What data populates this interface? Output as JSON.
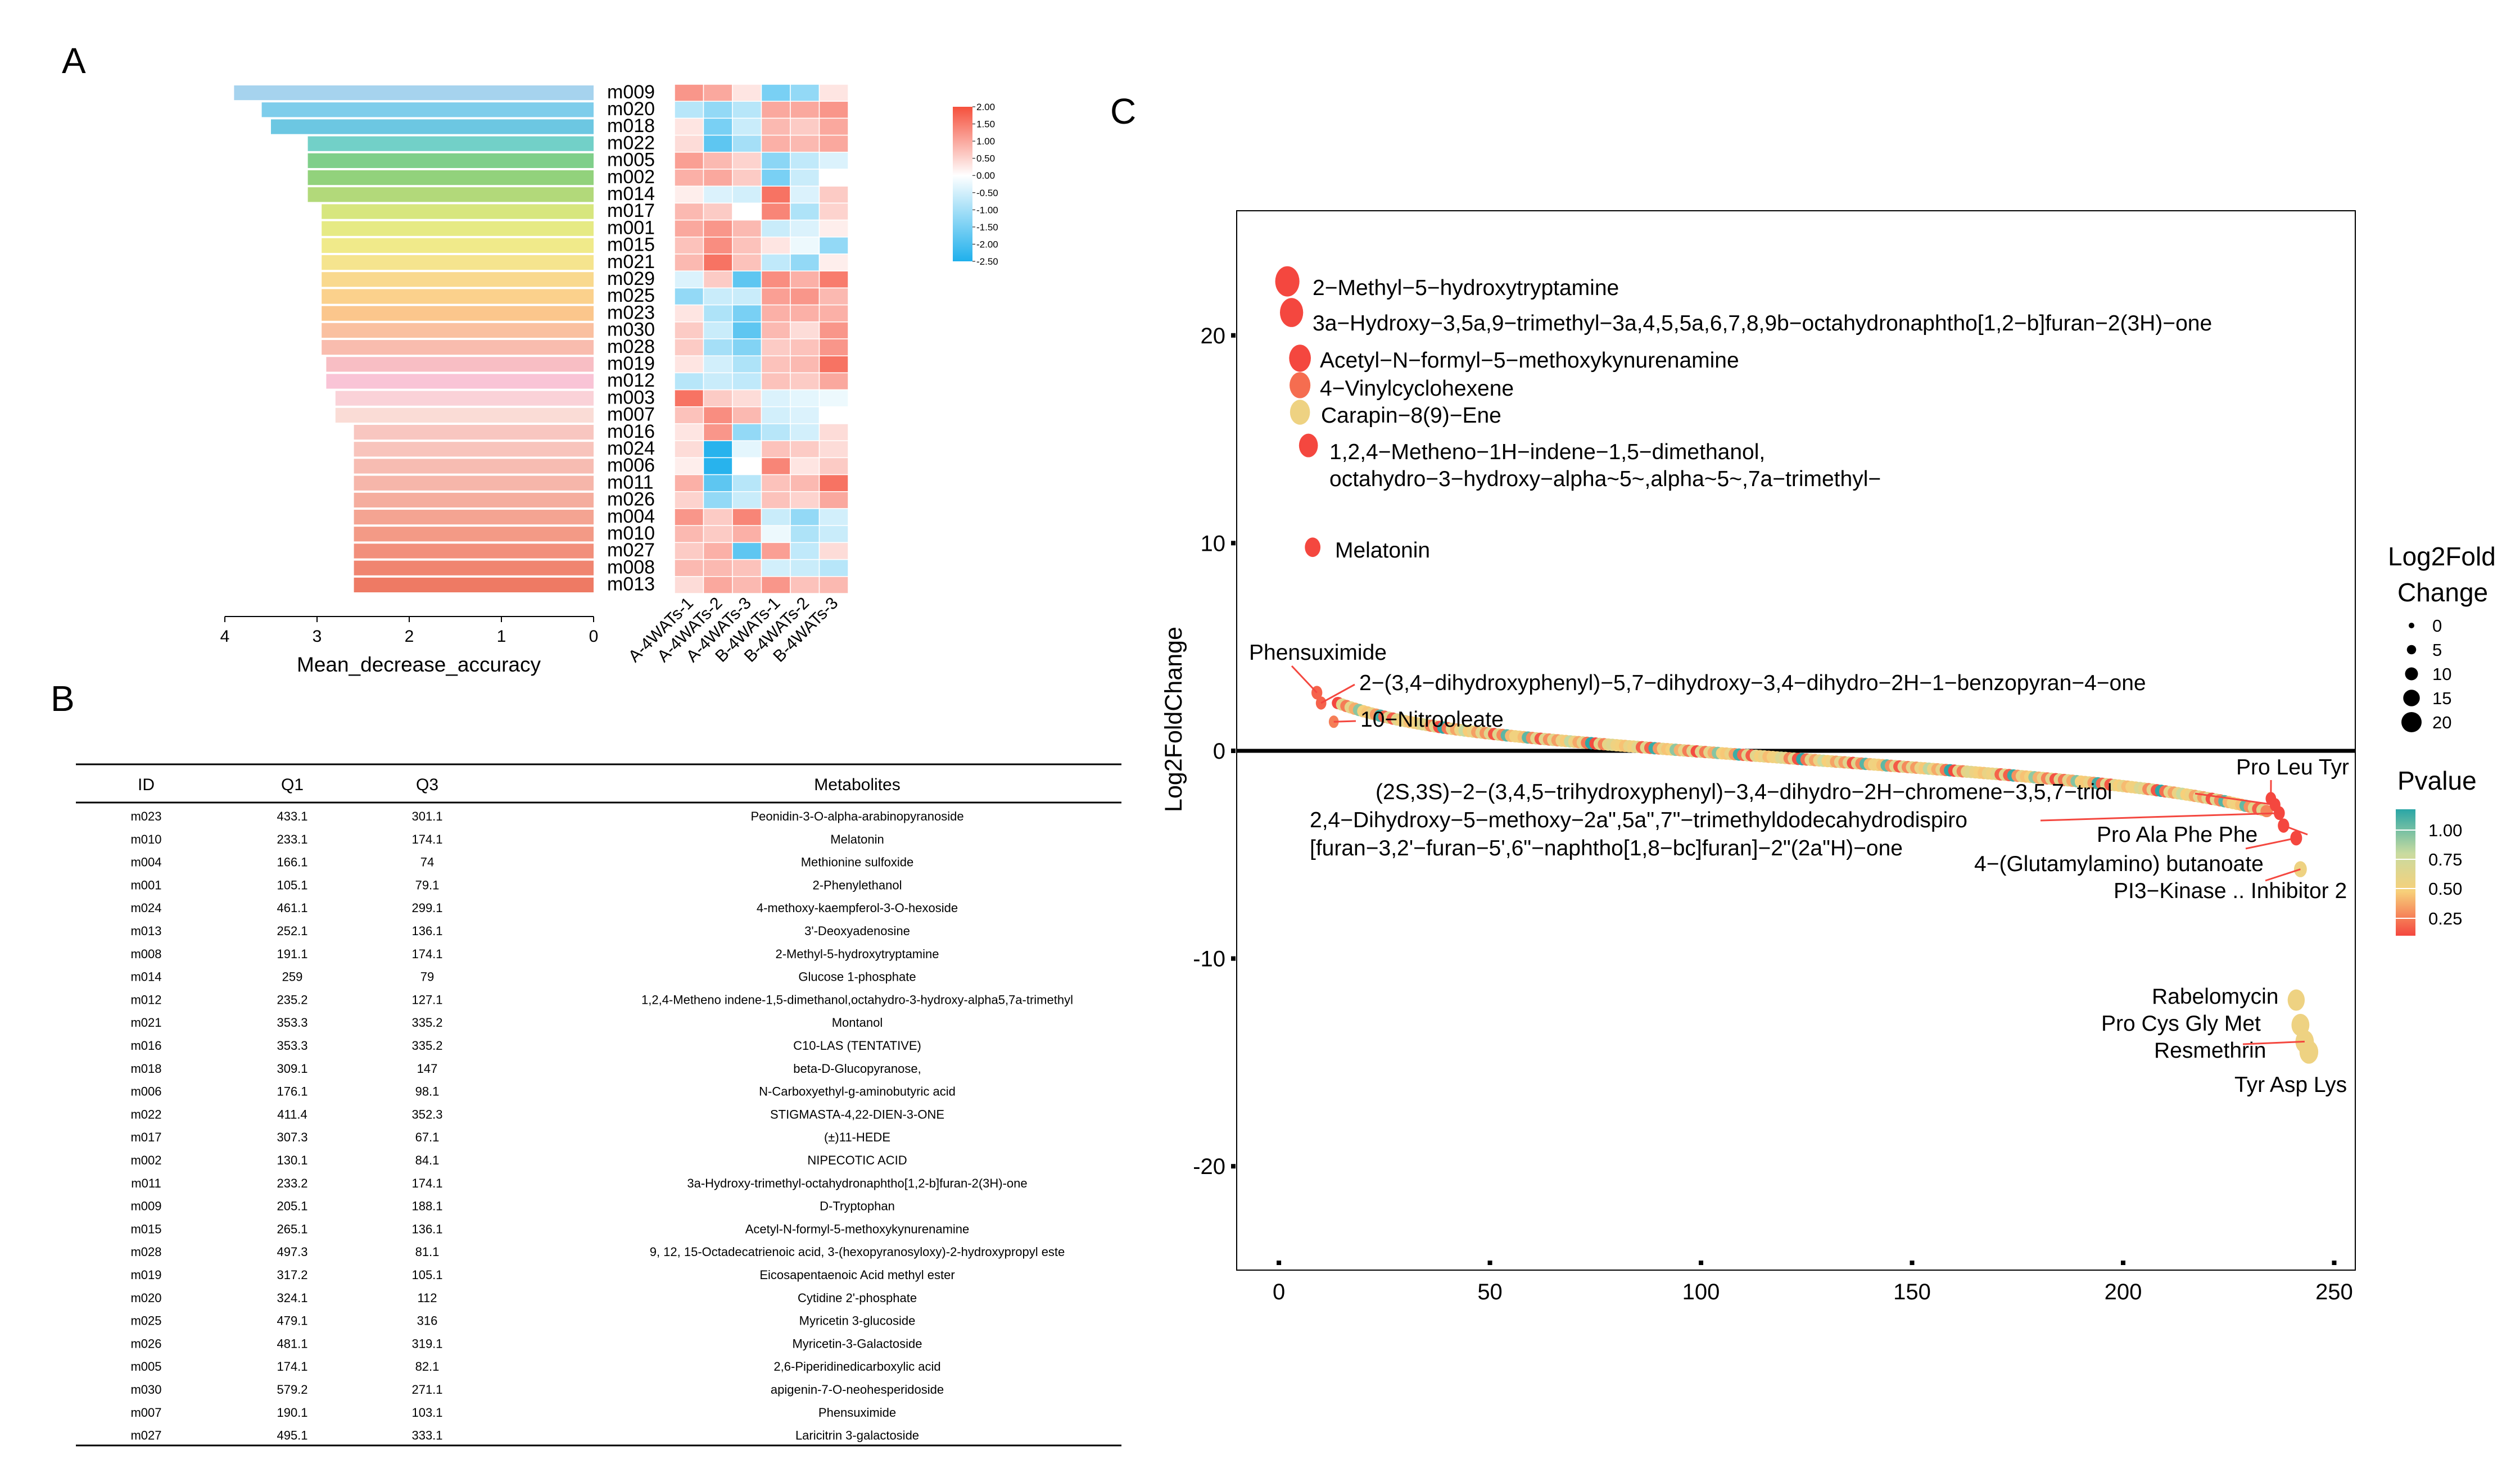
{
  "panels": {
    "a": "A",
    "b": "B",
    "c": "C"
  },
  "panel_a": {
    "bar_axis_label": "Mean_decrease_accuracy",
    "bar_ticks": [
      "4",
      "3",
      "2",
      "1",
      "0"
    ],
    "heatmap_columns": [
      "A-4WATs-1",
      "A-4WATs-2",
      "A-4WATs-3",
      "B-4WATs-1",
      "B-4WATs-2",
      "B-4WATs-3"
    ],
    "colorbar_labels": [
      "2.00",
      "1.50",
      "1.00",
      "0.50",
      "0.00",
      "-0.50",
      "-1.00",
      "-1.50",
      "-2.00",
      "-2.50"
    ]
  },
  "panel_b": {
    "headers": [
      "ID",
      "Q1",
      "Q3",
      "Metabolites"
    ],
    "rows": [
      [
        "m023",
        "433.1",
        "301.1",
        "Peonidin-3-O-alpha-arabinopyranoside"
      ],
      [
        "m010",
        "233.1",
        "174.1",
        "Melatonin"
      ],
      [
        "m004",
        "166.1",
        "74",
        "Methionine sulfoxide"
      ],
      [
        "m001",
        "105.1",
        "79.1",
        "2-Phenylethanol"
      ],
      [
        "m024",
        "461.1",
        "299.1",
        "4-methoxy-kaempferol-3-O-hexoside"
      ],
      [
        "m013",
        "252.1",
        "136.1",
        "3'-Deoxyadenosine"
      ],
      [
        "m008",
        "191.1",
        "174.1",
        "2-Methyl-5-hydroxytryptamine"
      ],
      [
        "m014",
        "259",
        "79",
        "Glucose  1-phosphate"
      ],
      [
        "m012",
        "235.2",
        "127.1",
        "1,2,4-Metheno indene-1,5-dimethanol,octahydro-3-hydroxy-alpha5,7a-trimethyl"
      ],
      [
        "m021",
        "353.3",
        "335.2",
        "Montanol"
      ],
      [
        "m016",
        "353.3",
        "335.2",
        "C10-LAS (TENTATIVE)"
      ],
      [
        "m018",
        "309.1",
        "147",
        "beta-D-Glucopyranose,"
      ],
      [
        "m006",
        "176.1",
        "98.1",
        "N-Carboxyethyl-g-aminobutyric acid"
      ],
      [
        "m022",
        "411.4",
        "352.3",
        "STIGMASTA-4,22-DIEN-3-ONE"
      ],
      [
        "m017",
        "307.3",
        "67.1",
        "(±)11-HEDE"
      ],
      [
        "m002",
        "130.1",
        "84.1",
        "NIPECOTIC ACID"
      ],
      [
        "m011",
        "233.2",
        "174.1",
        "3a-Hydroxy-trimethyl-octahydronaphtho[1,2-b]furan-2(3H)-one"
      ],
      [
        "m009",
        "205.1",
        "188.1",
        "D-Tryptophan"
      ],
      [
        "m015",
        "265.1",
        "136.1",
        "Acetyl-N-formyl-5-methoxykynurenamine"
      ],
      [
        "m028",
        "497.3",
        "81.1",
        "9, 12, 15-Octadecatrienoic acid, 3-(hexopyranosyloxy)-2-hydroxypropyl este"
      ],
      [
        "m019",
        "317.2",
        "105.1",
        "Eicosapentaenoic Acid methyl ester"
      ],
      [
        "m020",
        "324.1",
        "112",
        "Cytidine 2'-phosphate"
      ],
      [
        "m025",
        "479.1",
        "316",
        "Myricetin 3-glucoside"
      ],
      [
        "m026",
        "481.1",
        "319.1",
        "Myricetin-3-Galactoside"
      ],
      [
        "m005",
        "174.1",
        "82.1",
        "2,6-Piperidinedicarboxylic acid"
      ],
      [
        "m030",
        "579.2",
        "271.1",
        "apigenin-7-O-neohesperidoside"
      ],
      [
        "m007",
        "190.1",
        "103.1",
        "Phensuximide"
      ],
      [
        "m027",
        "495.1",
        "333.1",
        "Laricitrin 3-galactoside"
      ]
    ]
  },
  "panel_c": {
    "legend_size_title_1": "Log2Fold",
    "legend_size_title_2": "Change",
    "legend_size_labels": [
      "0",
      "5",
      "10",
      "15",
      "20"
    ],
    "legend_color_title": "Pvalue",
    "legend_color_labels": [
      "1.00",
      "0.75",
      "0.50",
      "0.25"
    ]
  },
  "chart_data": [
    {
      "type": "bar",
      "orientation": "horizontal",
      "xlabel": "Mean_decrease_accuracy",
      "xlim": [
        0,
        4
      ],
      "categories": [
        "m009",
        "m020",
        "m018",
        "m022",
        "m005",
        "m002",
        "m014",
        "m017",
        "m001",
        "m015",
        "m021",
        "m029",
        "m025",
        "m023",
        "m030",
        "m028",
        "m019",
        "m012",
        "m003",
        "m007",
        "m016",
        "m024",
        "m006",
        "m011",
        "m026",
        "m004",
        "m010",
        "m027",
        "m008",
        "m013"
      ],
      "values": [
        3.9,
        3.6,
        3.5,
        3.1,
        3.1,
        3.1,
        3.1,
        2.95,
        2.95,
        2.95,
        2.95,
        2.95,
        2.95,
        2.95,
        2.95,
        2.95,
        2.9,
        2.9,
        2.8,
        2.8,
        2.6,
        2.6,
        2.6,
        2.6,
        2.6,
        2.6,
        2.6,
        2.6,
        2.6,
        2.6
      ],
      "colors": [
        "#a6d3ee",
        "#7ecdeb",
        "#6cc7e2",
        "#72d0c8",
        "#7fcf8a",
        "#92d27c",
        "#b2d97a",
        "#d7e67e",
        "#e6ea84",
        "#f0ea8a",
        "#f5e48e",
        "#f9d98e",
        "#fbd18c",
        "#fbc68c",
        "#fac0a0",
        "#f9bcae",
        "#f8bec4",
        "#f9c4d6",
        "#fad2d8",
        "#fadcd6",
        "#f8c6c0",
        "#f8c4bc",
        "#f7bcb2",
        "#f6b6aa",
        "#f5ad9e",
        "#f4a492",
        "#f39a86",
        "#f28f7b",
        "#f08570",
        "#ee7a64"
      ]
    },
    {
      "type": "heatmap",
      "rows": [
        "m009",
        "m020",
        "m018",
        "m022",
        "m005",
        "m002",
        "m014",
        "m017",
        "m001",
        "m015",
        "m021",
        "m029",
        "m025",
        "m023",
        "m030",
        "m028",
        "m019",
        "m012",
        "m003",
        "m007",
        "m016",
        "m024",
        "m006",
        "m011",
        "m026",
        "m004",
        "m010",
        "m027",
        "m008",
        "m013"
      ],
      "columns": [
        "A-4WATs-1",
        "A-4WATs-2",
        "A-4WATs-3",
        "B-4WATs-1",
        "B-4WATs-2",
        "B-4WATs-3"
      ],
      "color_range": [
        -2.5,
        2.0
      ],
      "values": [
        [
          1.2,
          1.0,
          0.3,
          -1.5,
          -1.2,
          0.3
        ],
        [
          -0.8,
          -1.2,
          -0.8,
          1.0,
          1.0,
          1.2
        ],
        [
          0.3,
          -1.5,
          -0.6,
          0.8,
          0.6,
          1.0
        ],
        [
          0.4,
          -1.8,
          -1.0,
          0.9,
          0.8,
          1.0
        ],
        [
          1.1,
          0.8,
          0.5,
          -1.3,
          -0.7,
          -0.4
        ],
        [
          0.9,
          1.0,
          0.6,
          -1.5,
          -0.6,
          0.0
        ],
        [
          0.2,
          -0.4,
          -0.5,
          1.6,
          -0.4,
          0.6
        ],
        [
          0.8,
          0.6,
          0.0,
          1.4,
          -0.9,
          0.5
        ],
        [
          1.0,
          1.2,
          0.8,
          -0.6,
          -0.4,
          0.2
        ],
        [
          0.7,
          1.3,
          0.7,
          0.3,
          -0.2,
          -1.2
        ],
        [
          0.8,
          1.6,
          0.7,
          -0.7,
          -1.2,
          0.2
        ],
        [
          -0.4,
          0.6,
          -1.8,
          1.3,
          0.9,
          1.5
        ],
        [
          -1.2,
          -0.6,
          -0.6,
          1.1,
          1.2,
          0.8
        ],
        [
          0.3,
          -0.9,
          -1.5,
          0.9,
          0.9,
          0.9
        ],
        [
          0.6,
          -0.6,
          -1.8,
          0.8,
          0.4,
          1.2
        ],
        [
          0.6,
          -1.0,
          -1.4,
          0.6,
          0.7,
          1.2
        ],
        [
          0.3,
          -0.5,
          -0.9,
          0.7,
          0.8,
          1.6
        ],
        [
          -0.8,
          -0.6,
          -0.7,
          0.7,
          0.6,
          1.0
        ],
        [
          1.6,
          0.6,
          0.4,
          -0.4,
          -0.3,
          -0.2
        ],
        [
          0.7,
          1.3,
          0.8,
          -0.5,
          -0.4,
          0.0
        ],
        [
          0.3,
          1.2,
          -1.2,
          -0.8,
          -0.5,
          0.4
        ],
        [
          0.4,
          -2.4,
          -0.3,
          0.7,
          0.6,
          0.4
        ],
        [
          0.2,
          -2.4,
          0.0,
          1.4,
          0.3,
          0.6
        ],
        [
          0.9,
          -1.8,
          -0.8,
          0.7,
          0.8,
          1.6
        ],
        [
          0.5,
          -1.2,
          -0.6,
          0.7,
          0.5,
          1.0
        ],
        [
          1.2,
          0.6,
          1.4,
          -0.6,
          -1.2,
          -0.5
        ],
        [
          0.8,
          0.6,
          0.9,
          -0.2,
          -0.9,
          -0.6
        ],
        [
          0.6,
          0.9,
          -1.8,
          1.1,
          -0.7,
          0.4
        ],
        [
          0.8,
          0.8,
          0.7,
          -0.5,
          -0.6,
          -0.8
        ],
        [
          0.4,
          1.0,
          0.8,
          1.2,
          0.7,
          0.8
        ]
      ]
    },
    {
      "type": "scatter",
      "xlabel": "",
      "ylabel": "Log2FoldChange",
      "xlim": [
        -10,
        255
      ],
      "ylim": [
        -25,
        26
      ],
      "x_ticks": [
        0,
        50,
        100,
        150,
        200,
        250
      ],
      "y_ticks": [
        -20,
        -10,
        0,
        10,
        20
      ],
      "color_encoding": "Pvalue",
      "size_encoding": "Log2FoldChange",
      "labeled_points": [
        {
          "x": 2,
          "y": 22.6,
          "p": 0.25,
          "label": "2−Methyl−5−hydroxytryptamine"
        },
        {
          "x": 3,
          "y": 21.1,
          "p": 0.25,
          "label": "3a−Hydroxy−3,5a,9−trimethyl−3a,4,5,5a,6,7,8,9b−octahydronaphtho[1,2−b]furan−2(3H)−one"
        },
        {
          "x": 5,
          "y": 18.9,
          "p": 0.25,
          "label": "Acetyl−N−formyl−5−methoxykynurenamine"
        },
        {
          "x": 5,
          "y": 17.6,
          "p": 0.32,
          "label": "4−Vinylcyclohexene"
        },
        {
          "x": 5,
          "y": 16.3,
          "p": 0.55,
          "label": "Carapin−8(9)−Ene"
        },
        {
          "x": 7,
          "y": 14.7,
          "p": 0.25,
          "label": "1,2,4−Metheno−1H−indene−1,5−dimethanol,"
        },
        {
          "x": 8,
          "y": 9.8,
          "p": 0.25,
          "label": "Melatonin"
        },
        {
          "x": 9,
          "y": 2.8,
          "p": 0.3,
          "label": "Phensuximide"
        },
        {
          "x": 10,
          "y": 2.3,
          "p": 0.3,
          "label": "2−(3,4−dihydroxyphenyl)−5,7−dihydroxy−3,4−dihydro−2H−1−benzopyran−4−one"
        },
        {
          "x": 13,
          "y": 1.4,
          "p": 0.35,
          "label": "10−Nitrooleate"
        },
        {
          "x": 235,
          "y": -2.3,
          "p": 0.25,
          "label": "Pro Leu Tyr"
        },
        {
          "x": 236,
          "y": -2.6,
          "p": 0.25,
          "label": "(2S,3S)−2−(3,4,5−trihydroxyphenyl)−3,4−dihydro−2H−chromene−3,5,7−triol"
        },
        {
          "x": 237,
          "y": -3.0,
          "p": 0.25,
          "label": "2,4−Dihydroxy−5−methoxy−2a\",5a\",7\"−trimethyldodecahydrodispiro"
        },
        {
          "x": 238,
          "y": -3.6,
          "p": 0.25,
          "label": "Pro Ala Phe Phe"
        },
        {
          "x": 241,
          "y": -4.2,
          "p": 0.25,
          "label": "4−(Glutamylamino) butanoate"
        },
        {
          "x": 242,
          "y": -5.7,
          "p": 0.55,
          "label": "PI3−Kinase .. Inhibitor 2"
        },
        {
          "x": 241,
          "y": -12.0,
          "p": 0.55,
          "label": "Rabelomycin"
        },
        {
          "x": 242,
          "y": -13.2,
          "p": 0.55,
          "label": "Pro Cys Gly Met"
        },
        {
          "x": 243,
          "y": -14.0,
          "p": 0.55,
          "label": "Resmethrin"
        },
        {
          "x": 244,
          "y": -14.5,
          "p": 0.55,
          "label": "Tyr Asp Lys"
        }
      ],
      "extra_label_line": "octahydro−3−hydroxy−alpha~5~,alpha~5~,7a−trimethyl−",
      "extra_label_line_2": "[furan−3,2'−furan−5',6\"−naphtho[1,8−bc]furan]−2\"(2a\"H)−one",
      "main_curve": {
        "x_range": [
          14,
          234
        ],
        "y_start": 1.2,
        "y_end": -2.0,
        "description": "dense trail of points near zero"
      }
    }
  ]
}
